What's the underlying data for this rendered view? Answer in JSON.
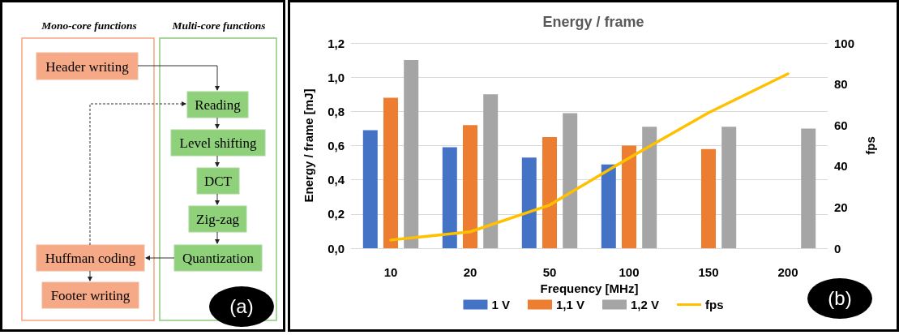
{
  "chart_data": [
    {
      "type": "other",
      "annotations": [
        "Mono-core functions",
        "Multi-core functions",
        "Header writing",
        "Reading",
        "Level shifting",
        "DCT",
        "Zig-zag",
        "Quantization",
        "Huffman coding",
        "Footer writing",
        "(a)"
      ]
    },
    {
      "type": "bar",
      "title": "Energy / frame",
      "xlabel": "Frequency [MHz]",
      "ylabel": "Energy / frame [mJ]",
      "y2label": "fps",
      "categories": [
        "10",
        "20",
        "50",
        "100",
        "150",
        "200"
      ],
      "series": [
        {
          "name": "1 V",
          "color": "#4472c4",
          "values": [
            0.69,
            0.59,
            0.53,
            0.49,
            null,
            null
          ]
        },
        {
          "name": "1,1 V",
          "color": "#ed7d31",
          "values": [
            0.88,
            0.72,
            0.65,
            0.6,
            0.58,
            null
          ]
        },
        {
          "name": "1,2 V",
          "color": "#a5a5a5",
          "values": [
            1.1,
            0.9,
            0.79,
            0.71,
            0.71,
            0.7
          ]
        },
        {
          "name": "fps",
          "type": "line",
          "axis": "y2",
          "color": "#ffc000",
          "values": [
            4,
            8,
            21,
            44,
            66,
            85
          ]
        }
      ],
      "ylim": [
        0,
        1.2
      ],
      "yticks": [
        {
          "value": 0,
          "label": "0,0"
        },
        {
          "value": 0.2,
          "label": "0,2"
        },
        {
          "value": 0.4,
          "label": "0,4"
        },
        {
          "value": 0.6,
          "label": "0,6"
        },
        {
          "value": 0.8,
          "label": "0,8"
        },
        {
          "value": 1,
          "label": "1,0"
        },
        {
          "value": 1.2,
          "label": "1,2"
        }
      ],
      "y2lim": [
        0,
        100
      ],
      "y2ticks": [
        0,
        20,
        40,
        60,
        80,
        100
      ],
      "grid": "y",
      "legend": "bottom",
      "marker": "none",
      "line_style": "solid",
      "annotations": [
        "(b)"
      ]
    }
  ]
}
